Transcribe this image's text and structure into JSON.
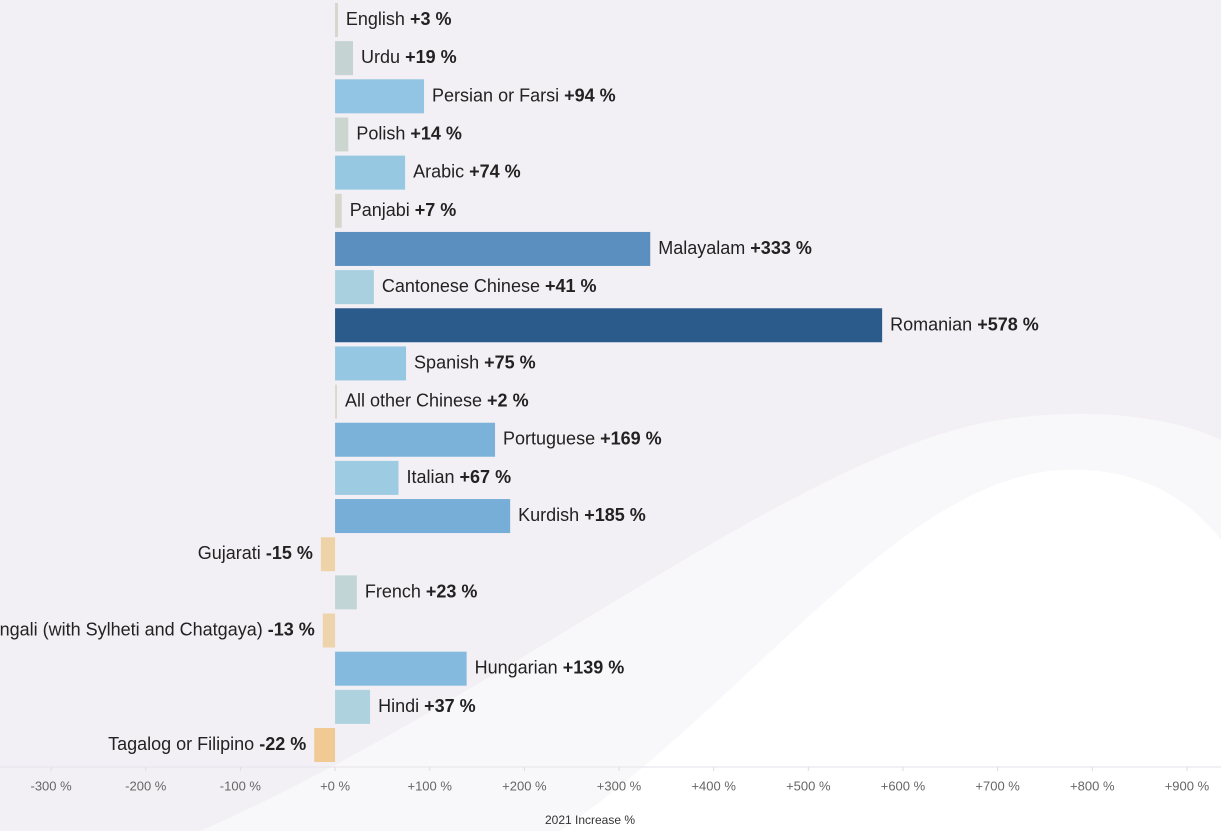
{
  "chart_data": {
    "type": "hbar",
    "x_label": "2021 Increase %",
    "categories": [
      "English",
      "Urdu",
      "Persian or Farsi",
      "Polish",
      "Arabic",
      "Panjabi",
      "Malayalam",
      "Cantonese Chinese",
      "Romanian",
      "Spanish",
      "All other Chinese",
      "Portuguese",
      "Italian",
      "Kurdish",
      "Gujarati",
      "French",
      "Bengali (with Sylheti and Chatgaya)",
      "Hungarian",
      "Hindi",
      "Tagalog or Filipino"
    ],
    "values": [
      3,
      19,
      94,
      14,
      74,
      7,
      333,
      41,
      578,
      75,
      2,
      169,
      67,
      185,
      -15,
      23,
      -13,
      139,
      37,
      -22
    ],
    "value_labels": [
      "+3 %",
      "+19 %",
      "+94 %",
      "+14 %",
      "+74 %",
      "+7 %",
      "+333 %",
      "+41 %",
      "+578 %",
      "+75 %",
      "+2 %",
      "+169 %",
      "+67 %",
      "+185 %",
      "-15 %",
      "+23 %",
      "-13 %",
      "+139 %",
      "+37 %",
      "-22 %"
    ],
    "colors": [
      "#d8d4cc",
      "#c5d3d3",
      "#92c4e3",
      "#cbd6d0",
      "#96c8e2",
      "#d6d6cc",
      "#5b8fc0",
      "#a9d0df",
      "#2b5b8b",
      "#95c7e2",
      "#dcd6cc",
      "#7ab2da",
      "#9ccbe2",
      "#76aed8",
      "#efd3a8",
      "#c1d5d6",
      "#eed4ac",
      "#84badd",
      "#aed2de",
      "#f0c994"
    ],
    "xlim": [
      -354,
      936
    ],
    "xticks": [
      {
        "value": -300,
        "label": "-300 %"
      },
      {
        "value": -200,
        "label": "-200 %"
      },
      {
        "value": -100,
        "label": "-100 %"
      },
      {
        "value": 0,
        "label": "+0 %"
      },
      {
        "value": 100,
        "label": "+100 %"
      },
      {
        "value": 200,
        "label": "+200 %"
      },
      {
        "value": 300,
        "label": "+300 %"
      },
      {
        "value": 400,
        "label": "+400 %"
      },
      {
        "value": 500,
        "label": "+500 %"
      },
      {
        "value": 600,
        "label": "+600 %"
      },
      {
        "value": 700,
        "label": "+700 %"
      },
      {
        "value": 800,
        "label": "+800 %"
      },
      {
        "value": 900,
        "label": "+900 %"
      }
    ],
    "grid": false
  }
}
